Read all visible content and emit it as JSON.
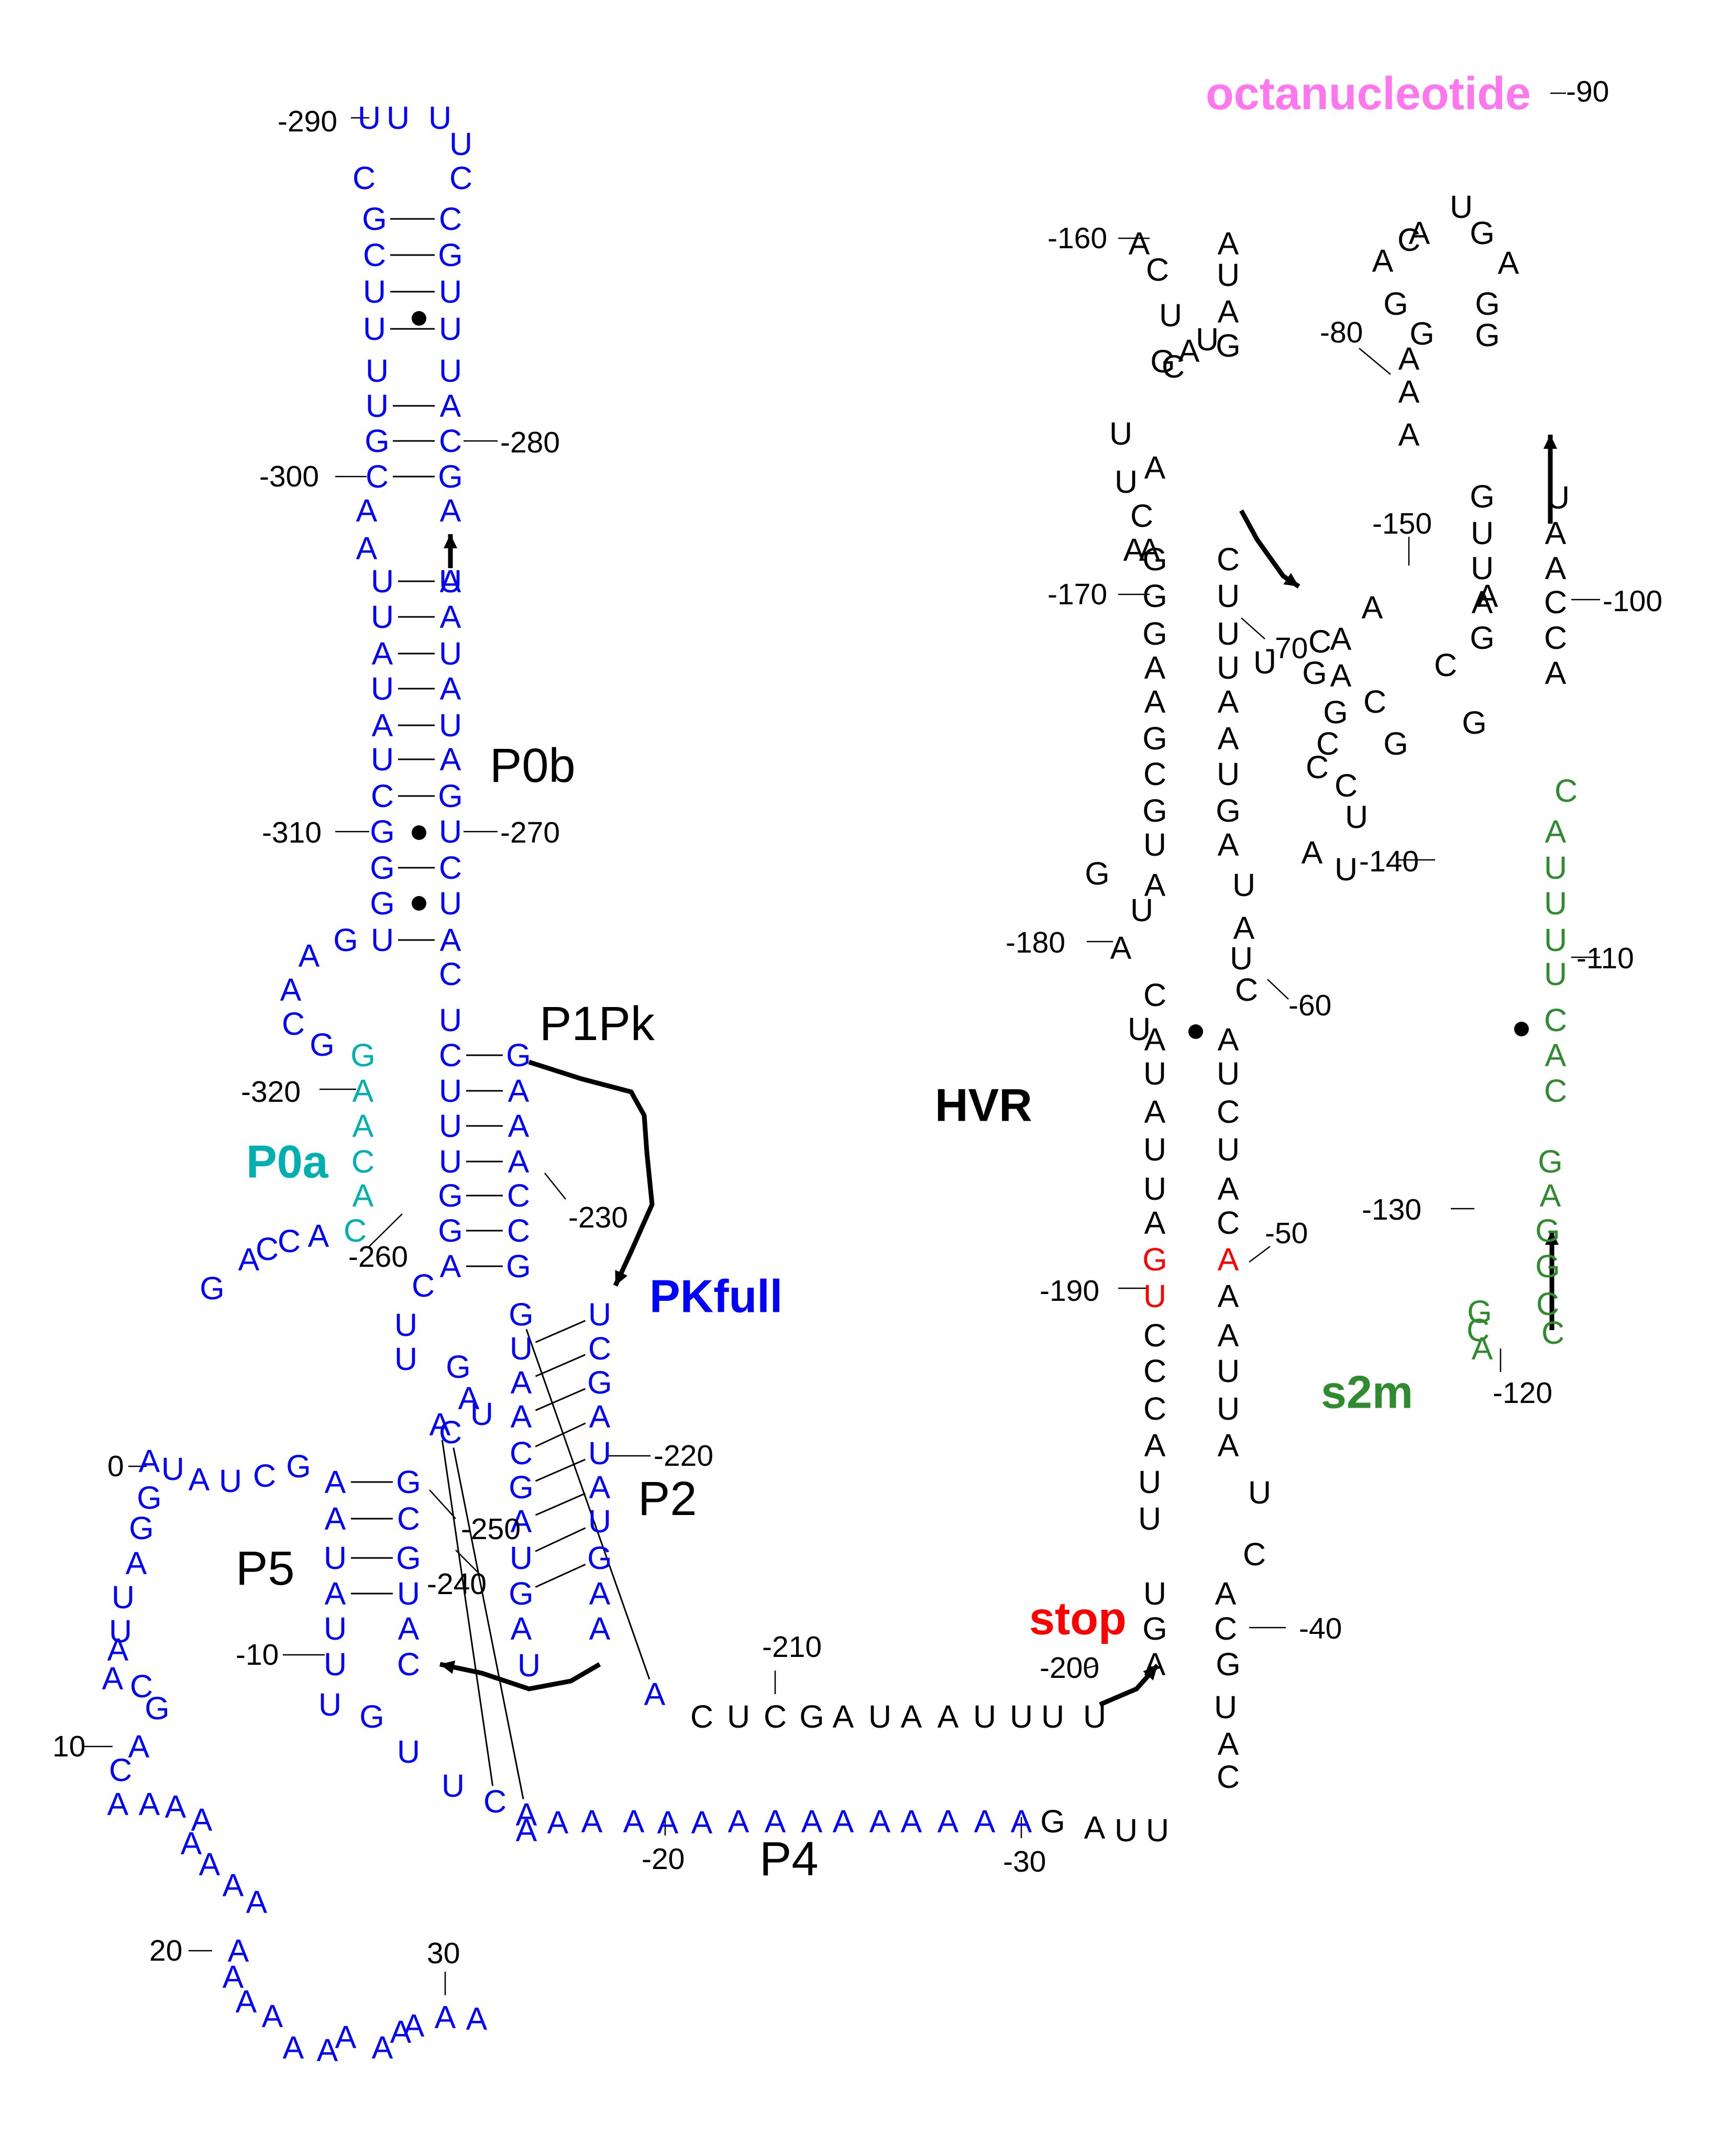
{
  "colors": {
    "default": "#000000",
    "blue": "#0000ff",
    "cyan": "#00b0b0",
    "green": "#2e8b2e",
    "pink": "#ff77ee",
    "red": "#ff0000"
  },
  "labels": {
    "p0b": "P0b",
    "p0a": "P0a",
    "p1pk": "P1Pk",
    "pkfull": "PKfull",
    "p2": "P2",
    "p5": "P5",
    "p4": "P4",
    "hvr": "HVR",
    "stop": "stop",
    "s2m": "s2m",
    "octanucleotide": "octanucleotide"
  },
  "nucleotides": [
    [
      "b",
      "U"
    ],
    [
      "b",
      "U"
    ],
    [
      "b",
      "U"
    ],
    [
      "b",
      "U"
    ],
    [
      "b",
      "C"
    ],
    [
      "b",
      "C"
    ],
    [
      "b",
      "G"
    ],
    [
      "b",
      "C"
    ],
    [
      "b",
      "C"
    ],
    [
      "b",
      "G"
    ],
    [
      "b",
      "U"
    ],
    [
      "b",
      "U"
    ],
    [
      "b",
      "U"
    ],
    [
      "b",
      "U"
    ],
    [
      "b",
      "U"
    ],
    [
      "b",
      "U"
    ],
    [
      "b",
      "U"
    ],
    [
      "b",
      "A"
    ],
    [
      "b",
      "G"
    ],
    [
      "b",
      "C"
    ],
    [
      "b",
      "C"
    ],
    [
      "b",
      "G"
    ],
    [
      "b",
      "A"
    ],
    [
      "b",
      "A"
    ],
    [
      "b",
      "A"
    ],
    [
      "b",
      "A"
    ],
    [
      "b",
      "U"
    ],
    [
      "b",
      "U"
    ],
    [
      "b",
      "U"
    ],
    [
      "b",
      "A"
    ],
    [
      "b",
      "A"
    ],
    [
      "b",
      "U"
    ],
    [
      "b",
      "U"
    ],
    [
      "b",
      "A"
    ],
    [
      "b",
      "A"
    ],
    [
      "b",
      "U"
    ],
    [
      "b",
      "U"
    ],
    [
      "b",
      "A"
    ],
    [
      "b",
      "C"
    ],
    [
      "b",
      "G"
    ],
    [
      "b",
      "G"
    ],
    [
      "b",
      "U"
    ],
    [
      "b",
      "G"
    ],
    [
      "b",
      "C"
    ],
    [
      "b",
      "G"
    ],
    [
      "b",
      "U"
    ],
    [
      "b",
      "U"
    ],
    [
      "b",
      "A"
    ],
    [
      "b",
      "C"
    ],
    [
      "b",
      "U"
    ],
    [
      "b",
      "G"
    ],
    [
      "b",
      "A"
    ],
    [
      "b",
      "A"
    ],
    [
      "b",
      "C"
    ],
    [
      "b",
      "G"
    ],
    [
      "c",
      "G"
    ],
    [
      "c",
      "A"
    ],
    [
      "c",
      "A"
    ],
    [
      "c",
      "C"
    ],
    [
      "c",
      "A"
    ],
    [
      "c",
      "C"
    ],
    [
      "b",
      "A"
    ],
    [
      "b",
      "C"
    ],
    [
      "b",
      "C"
    ],
    [
      "b",
      "A"
    ],
    [
      "b",
      "G"
    ],
    [
      "b",
      "C"
    ],
    [
      "b",
      "G"
    ],
    [
      "b",
      "U"
    ],
    [
      "b",
      "A"
    ],
    [
      "b",
      "U"
    ],
    [
      "b",
      "A"
    ],
    [
      "b",
      "U"
    ],
    [
      "b",
      "A"
    ],
    [
      "b",
      "G"
    ],
    [
      "b",
      "C"
    ],
    [
      "b",
      "G"
    ],
    [
      "b",
      "C"
    ],
    [
      "b",
      "A"
    ],
    [
      "b",
      "G"
    ],
    [
      "b",
      "C"
    ],
    [
      "b",
      "G"
    ],
    [
      "b",
      "U"
    ],
    [
      "b",
      "A"
    ],
    [
      "b",
      "A"
    ],
    [
      "b",
      "C"
    ],
    [
      "b",
      "G"
    ],
    [
      "b",
      "A"
    ],
    [
      "b",
      "U"
    ],
    [
      "b",
      "G"
    ],
    [
      "b",
      "A"
    ],
    [
      "b",
      "U"
    ],
    [
      "b",
      "A"
    ],
    [
      "b",
      "U"
    ],
    [
      "b",
      "C"
    ],
    [
      "b",
      "G"
    ],
    [
      "b",
      "A"
    ],
    [
      "b",
      "U"
    ],
    [
      "b",
      "A"
    ],
    [
      "b",
      "U"
    ],
    [
      "b",
      "G"
    ],
    [
      "b",
      "A"
    ],
    [
      "b",
      "A"
    ],
    [
      "b",
      "U"
    ],
    [
      "b",
      "U"
    ],
    [
      "b",
      "G"
    ],
    [
      "b",
      "A"
    ],
    [
      "b",
      "A"
    ],
    [
      "b",
      "C"
    ],
    [
      "b",
      "G"
    ],
    [
      "b",
      "C"
    ],
    [
      "b",
      "G"
    ],
    [
      "b",
      "U"
    ],
    [
      "b",
      "A"
    ],
    [
      "b",
      "C"
    ],
    [
      "b",
      "U"
    ],
    [
      "b",
      "U"
    ],
    [
      "b",
      "G"
    ],
    [
      "b",
      "U"
    ],
    [
      "b",
      "U"
    ],
    [
      "b",
      "C"
    ],
    [
      "b",
      "A"
    ],
    [
      "b",
      "A"
    ],
    [
      "b",
      "A"
    ],
    [
      "b",
      "U"
    ],
    [
      "b",
      "A"
    ],
    [
      "b",
      "U"
    ],
    [
      "b",
      "U"
    ],
    [
      "b",
      "G"
    ],
    [
      "b",
      "C"
    ],
    [
      "b",
      "U"
    ],
    [
      "b",
      "A"
    ],
    [
      "b",
      "U"
    ],
    [
      "b",
      "A"
    ],
    [
      "b",
      "G"
    ],
    [
      "b",
      "G"
    ],
    [
      "b",
      "A"
    ],
    [
      "b",
      "U"
    ],
    [
      "b",
      "U"
    ],
    [
      "b",
      "A"
    ],
    [
      "b",
      "A"
    ],
    [
      "b",
      "C"
    ],
    [
      "b",
      "G"
    ],
    [
      "b",
      "A"
    ],
    [
      "b",
      "C"
    ],
    [
      "b",
      "A"
    ],
    [
      "b",
      "A"
    ],
    [
      "b",
      "A"
    ],
    [
      "b",
      "A"
    ],
    [
      "b",
      "A"
    ],
    [
      "b",
      "A"
    ],
    [
      "b",
      "A"
    ],
    [
      "b",
      "A"
    ],
    [
      "b",
      "A"
    ],
    [
      "b",
      "A"
    ],
    [
      "b",
      "A"
    ],
    [
      "b",
      "A"
    ],
    [
      "b",
      "A"
    ],
    [
      "b",
      "A"
    ],
    [
      "b",
      "A"
    ],
    [
      "b",
      "A"
    ],
    [
      "b",
      "A"
    ],
    [
      "b",
      "A"
    ],
    [
      "b",
      "A"
    ],
    [
      "b",
      "A"
    ],
    [
      "b",
      "A"
    ],
    [
      "b",
      "A"
    ],
    [
      "b",
      "A"
    ],
    [
      "b",
      "A"
    ],
    [
      "b",
      "A"
    ],
    [
      "b",
      "A"
    ],
    [
      "b",
      "A"
    ],
    [
      "b",
      "A"
    ],
    [
      "b",
      "A"
    ],
    [
      "b",
      "A"
    ],
    [
      "b",
      "A"
    ],
    [
      "b",
      "A"
    ],
    [
      "b",
      "A"
    ],
    [
      "b",
      "A"
    ],
    [
      "b",
      "A"
    ],
    [
      "k",
      "G"
    ],
    [
      "k",
      "A"
    ],
    [
      "k",
      "U"
    ],
    [
      "k",
      "U"
    ],
    [
      "k",
      "C"
    ],
    [
      "k",
      "U"
    ],
    [
      "k",
      "C"
    ],
    [
      "k",
      "G"
    ],
    [
      "k",
      "A"
    ],
    [
      "k",
      "U"
    ],
    [
      "k",
      "A"
    ],
    [
      "k",
      "A"
    ],
    [
      "k",
      "U"
    ],
    [
      "k",
      "U"
    ],
    [
      "k",
      "U"
    ],
    [
      "k",
      "U"
    ],
    [
      "k",
      "A"
    ],
    [
      "k",
      "G"
    ],
    [
      "k",
      "U"
    ],
    [
      "k",
      "G"
    ],
    [
      "k",
      "U"
    ],
    [
      "k",
      "A"
    ],
    [
      "k",
      "C"
    ],
    [
      "k",
      "C"
    ],
    [
      "k",
      "A"
    ],
    [
      "k",
      "C"
    ],
    [
      "k",
      "U"
    ],
    [
      "k",
      "U"
    ],
    [
      "k",
      "U"
    ],
    [
      "k",
      "A"
    ],
    [
      "k",
      "A"
    ],
    [
      "k",
      "U"
    ],
    [
      "k",
      "C"
    ],
    [
      "k",
      "U"
    ],
    [
      "k",
      "C"
    ],
    [
      "k",
      "A"
    ],
    [
      "k",
      "C"
    ],
    [
      "k",
      "A"
    ],
    [
      "r",
      "U"
    ],
    [
      "r",
      "A"
    ],
    [
      "r",
      "G"
    ],
    [
      "k",
      "C"
    ],
    [
      "k",
      "A"
    ],
    [
      "k",
      "A"
    ],
    [
      "k",
      "U"
    ],
    [
      "k",
      "U"
    ],
    [
      "k",
      "U"
    ],
    [
      "k",
      "C"
    ],
    [
      "k",
      "A"
    ],
    [
      "k",
      "U"
    ],
    [
      "k",
      "U"
    ],
    [
      "k",
      "A"
    ],
    [
      "k",
      "A"
    ],
    [
      "k",
      "C"
    ],
    [
      "k",
      "U"
    ],
    [
      "k",
      "A"
    ],
    [
      "k",
      "C"
    ],
    [
      "k",
      "U"
    ],
    [
      "k",
      "A"
    ],
    [
      "k",
      "U"
    ],
    [
      "k",
      "G"
    ],
    [
      "k",
      "U"
    ],
    [
      "k",
      "A"
    ],
    [
      "k",
      "A"
    ],
    [
      "k",
      "U"
    ],
    [
      "k",
      "G"
    ],
    [
      "k",
      "G"
    ],
    [
      "k",
      "U"
    ],
    [
      "k",
      "C"
    ],
    [
      "k",
      "A"
    ],
    [
      "k",
      "G"
    ],
    [
      "k",
      "A"
    ],
    [
      "k",
      "A"
    ],
    [
      "k",
      "U"
    ],
    [
      "k",
      "A"
    ],
    [
      "k",
      "U"
    ],
    [
      "k",
      "U"
    ],
    [
      "k",
      "G"
    ],
    [
      "k",
      "U"
    ],
    [
      "k",
      "G"
    ],
    [
      "k",
      "C"
    ],
    [
      "k",
      "G"
    ],
    [
      "k",
      "A"
    ],
    [
      "k",
      "A"
    ],
    [
      "k",
      "C"
    ],
    [
      "k",
      "A"
    ],
    [
      "k",
      "A"
    ],
    [
      "k",
      "U"
    ],
    [
      "k",
      "U"
    ],
    [
      "k",
      "A"
    ],
    [
      "k",
      "C"
    ],
    [
      "k",
      "G"
    ],
    [
      "k",
      "A"
    ],
    [
      "k",
      "U"
    ],
    [
      "k",
      "U"
    ],
    [
      "k",
      "C"
    ],
    [
      "k",
      "A"
    ],
    [
      "k",
      "A"
    ],
    [
      "k",
      "U"
    ],
    [
      "k",
      "A"
    ],
    [
      "k",
      "G"
    ],
    [
      "k",
      "U"
    ],
    [
      "k",
      "A"
    ],
    [
      "k",
      "U"
    ],
    [
      "k",
      "C"
    ],
    [
      "k",
      "C"
    ],
    [
      "k",
      "C"
    ],
    [
      "k",
      "G"
    ],
    [
      "k",
      "G"
    ],
    [
      "k",
      "G"
    ],
    [
      "k",
      "A"
    ],
    [
      "k",
      "C"
    ],
    [
      "k",
      "C"
    ],
    [
      "k",
      "C"
    ],
    [
      "k",
      "G"
    ],
    [
      "k",
      "G"
    ],
    [
      "k",
      "A"
    ],
    [
      "k",
      "U"
    ],
    [
      "k",
      "U"
    ],
    [
      "k",
      "G"
    ],
    [
      "k",
      "A"
    ],
    [
      "k",
      "A"
    ],
    [
      "k",
      "A"
    ],
    [
      "k",
      "G"
    ],
    [
      "k",
      "G"
    ],
    [
      "k",
      "A"
    ],
    [
      "k",
      "C"
    ],
    [
      "k",
      "A"
    ],
    [
      "k",
      "U"
    ],
    [
      "k",
      "G"
    ],
    [
      "k",
      "A"
    ],
    [
      "k",
      "G"
    ],
    [
      "k",
      "G"
    ],
    [
      "k",
      "A"
    ],
    [
      "k",
      "U"
    ],
    [
      "k",
      "A"
    ],
    [
      "k",
      "A"
    ],
    [
      "k",
      "C"
    ],
    [
      "k",
      "C"
    ],
    [
      "k",
      "A"
    ],
    [
      "g",
      "C"
    ],
    [
      "g",
      "A"
    ],
    [
      "g",
      "U"
    ],
    [
      "g",
      "U"
    ],
    [
      "g",
      "U"
    ],
    [
      "g",
      "U"
    ],
    [
      "g",
      "C"
    ],
    [
      "g",
      "A"
    ],
    [
      "g",
      "C"
    ],
    [
      "g",
      "G"
    ],
    [
      "g",
      "A"
    ],
    [
      "g",
      "G"
    ],
    [
      "g",
      "G"
    ],
    [
      "g",
      "C"
    ],
    [
      "g",
      "C"
    ],
    [
      "g",
      "A"
    ],
    [
      "g",
      "C"
    ],
    [
      "g",
      "G"
    ],
    [
      "g",
      "G"
    ],
    [
      "g",
      "U"
    ],
    [
      "g",
      "A"
    ],
    [
      "g",
      "G"
    ],
    [
      "g",
      "G"
    ],
    [
      "g",
      "C"
    ],
    [
      "g",
      "G"
    ],
    [
      "g",
      "A"
    ],
    [
      "g",
      "U"
    ],
    [
      "g",
      "U"
    ],
    [
      "g",
      "C"
    ],
    [
      "g",
      "G"
    ],
    [
      "g",
      "A"
    ],
    [
      "g",
      "G"
    ],
    [
      "g",
      "A"
    ],
    [
      "g",
      "C"
    ],
    [
      "g",
      "U"
    ],
    [
      "g",
      "A"
    ],
    [
      "g",
      "C"
    ],
    [
      "g",
      "U"
    ],
    [
      "g",
      "A"
    ],
    [
      "g",
      "U"
    ],
    [
      "g",
      "C"
    ],
    [
      "g",
      "U"
    ],
    [
      "g",
      "A"
    ],
    [
      "g",
      "G"
    ],
    [
      "g",
      "C"
    ],
    [
      "k",
      "U"
    ],
    [
      "k",
      "G"
    ],
    [
      "k",
      "C"
    ],
    [
      "k",
      "C"
    ],
    [
      "k",
      "U"
    ],
    [
      "k",
      "A"
    ],
    [
      "k",
      "U"
    ],
    [
      "k",
      "A"
    ],
    [
      "k",
      "C"
    ],
    [
      "p",
      "C"
    ],
    [
      "p",
      "G"
    ],
    [
      "p",
      "A"
    ],
    [
      "p",
      "G"
    ],
    [
      "p",
      "A"
    ],
    [
      "p",
      "G"
    ],
    [
      "p",
      "G"
    ],
    [
      "p",
      "G"
    ],
    [
      "k",
      "A"
    ],
    [
      "k",
      "U"
    ],
    [
      "k",
      "C"
    ]
  ],
  "numbers": [
    "-290",
    "-280",
    "-300",
    "-310",
    "-270",
    "-320",
    "-260",
    "-230",
    "-220",
    "-250",
    "-240",
    "-10",
    "0",
    "10",
    "20",
    "30",
    "-210",
    "-20",
    "-30",
    "-200",
    "-40",
    "-50",
    "-60",
    "-70",
    "-80",
    "-90",
    "-100",
    "-110",
    "-120",
    "-130",
    "-140",
    "-150",
    "-160",
    "-170",
    "-180",
    "-190"
  ]
}
